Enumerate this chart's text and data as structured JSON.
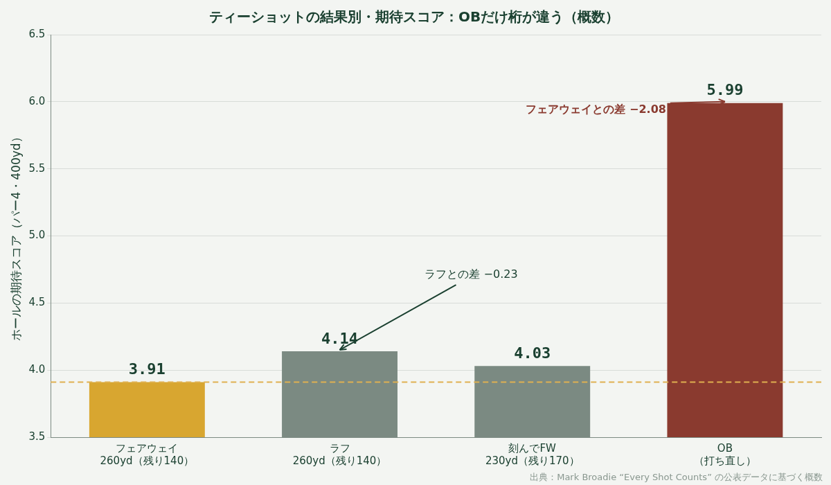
{
  "chart_data": {
    "type": "bar",
    "title": "ティーショットの結果別・期待スコア：OBだけ桁が違う（概数）",
    "ylabel": "ホールの期待スコア（パー4・400yd）",
    "categories": [
      "フェアウェイ\n260yd（残り140）",
      "ラフ\n260yd（残り140）",
      "刻んでFW\n230yd（残り170）",
      "OB\n（打ち直し）"
    ],
    "values": [
      3.91,
      4.14,
      4.03,
      5.99
    ],
    "colors": [
      "#d8a630",
      "#7b8a82",
      "#7b8a82",
      "#8a3a2f"
    ],
    "ylim": [
      3.5,
      6.5
    ],
    "yticks": [
      3.5,
      {
        "value": 4,
        "label": "4.0"
      },
      4.5,
      {
        "value": 5,
        "label": "5.0"
      },
      5.5,
      {
        "value": 6,
        "label": "6.0"
      },
      6.5
    ],
    "grid": "y",
    "legend": false,
    "data_labels": true,
    "ref_lines": [
      {
        "axis": "y",
        "value": 3.91,
        "color": "#e0b050",
        "line_style": "dashed"
      }
    ],
    "annotations": [
      {
        "text": "ラフとの差 −0.23",
        "x": "ラフ\n260yd（残り140）",
        "y": 4.14
      },
      {
        "text": "フェアウェイとの差 −2.08",
        "x": "OB\n（打ち直し）",
        "y": 5.99
      },
      "出典：Mark Broadie “Every Shot Counts” の公表データに基づく概数"
    ]
  }
}
